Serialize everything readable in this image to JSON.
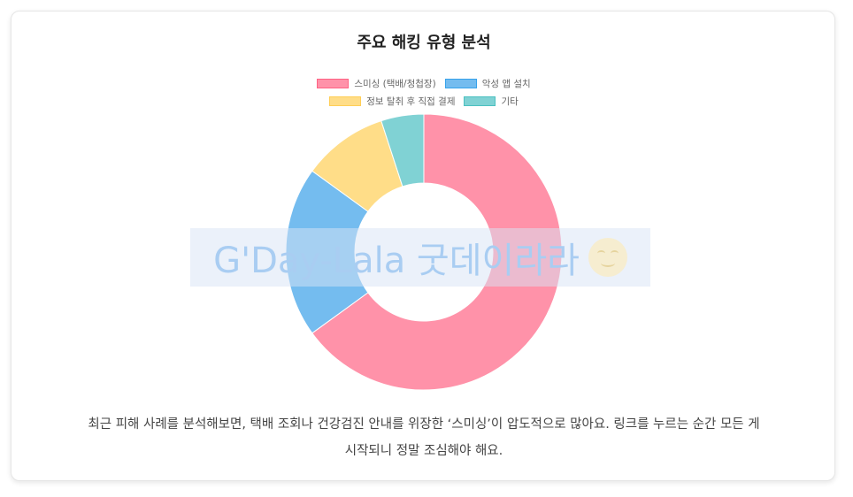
{
  "chart_data": {
    "type": "pie",
    "donut": true,
    "title": "주요 해킹 유형 분석",
    "categories": [
      "스미싱 (택배/청첩장)",
      "악성 앱 설치",
      "정보 탈취 후 직접 결제",
      "기타"
    ],
    "values": [
      65,
      20,
      10,
      5
    ],
    "colors": [
      "#ff92a9",
      "#74bcef",
      "#ffdd88",
      "#80d2d4"
    ],
    "borderColors": [
      "#ff6384",
      "#36a2eb",
      "#ffce56",
      "#4bc0c0"
    ],
    "legend_position": "top"
  },
  "watermark": {
    "text": "G'Day-Lala 굿데이라라",
    "icon": "smiling-face-icon"
  },
  "description": {
    "line1": "최근 피해 사례를 분석해보면, 택배 조회나 건강검진 안내를 위장한 ‘스미싱’이 압도적으로 많아요. 링크를 누르는 순간 모든 게",
    "line2": "시작되니 정말 조심해야 해요."
  }
}
